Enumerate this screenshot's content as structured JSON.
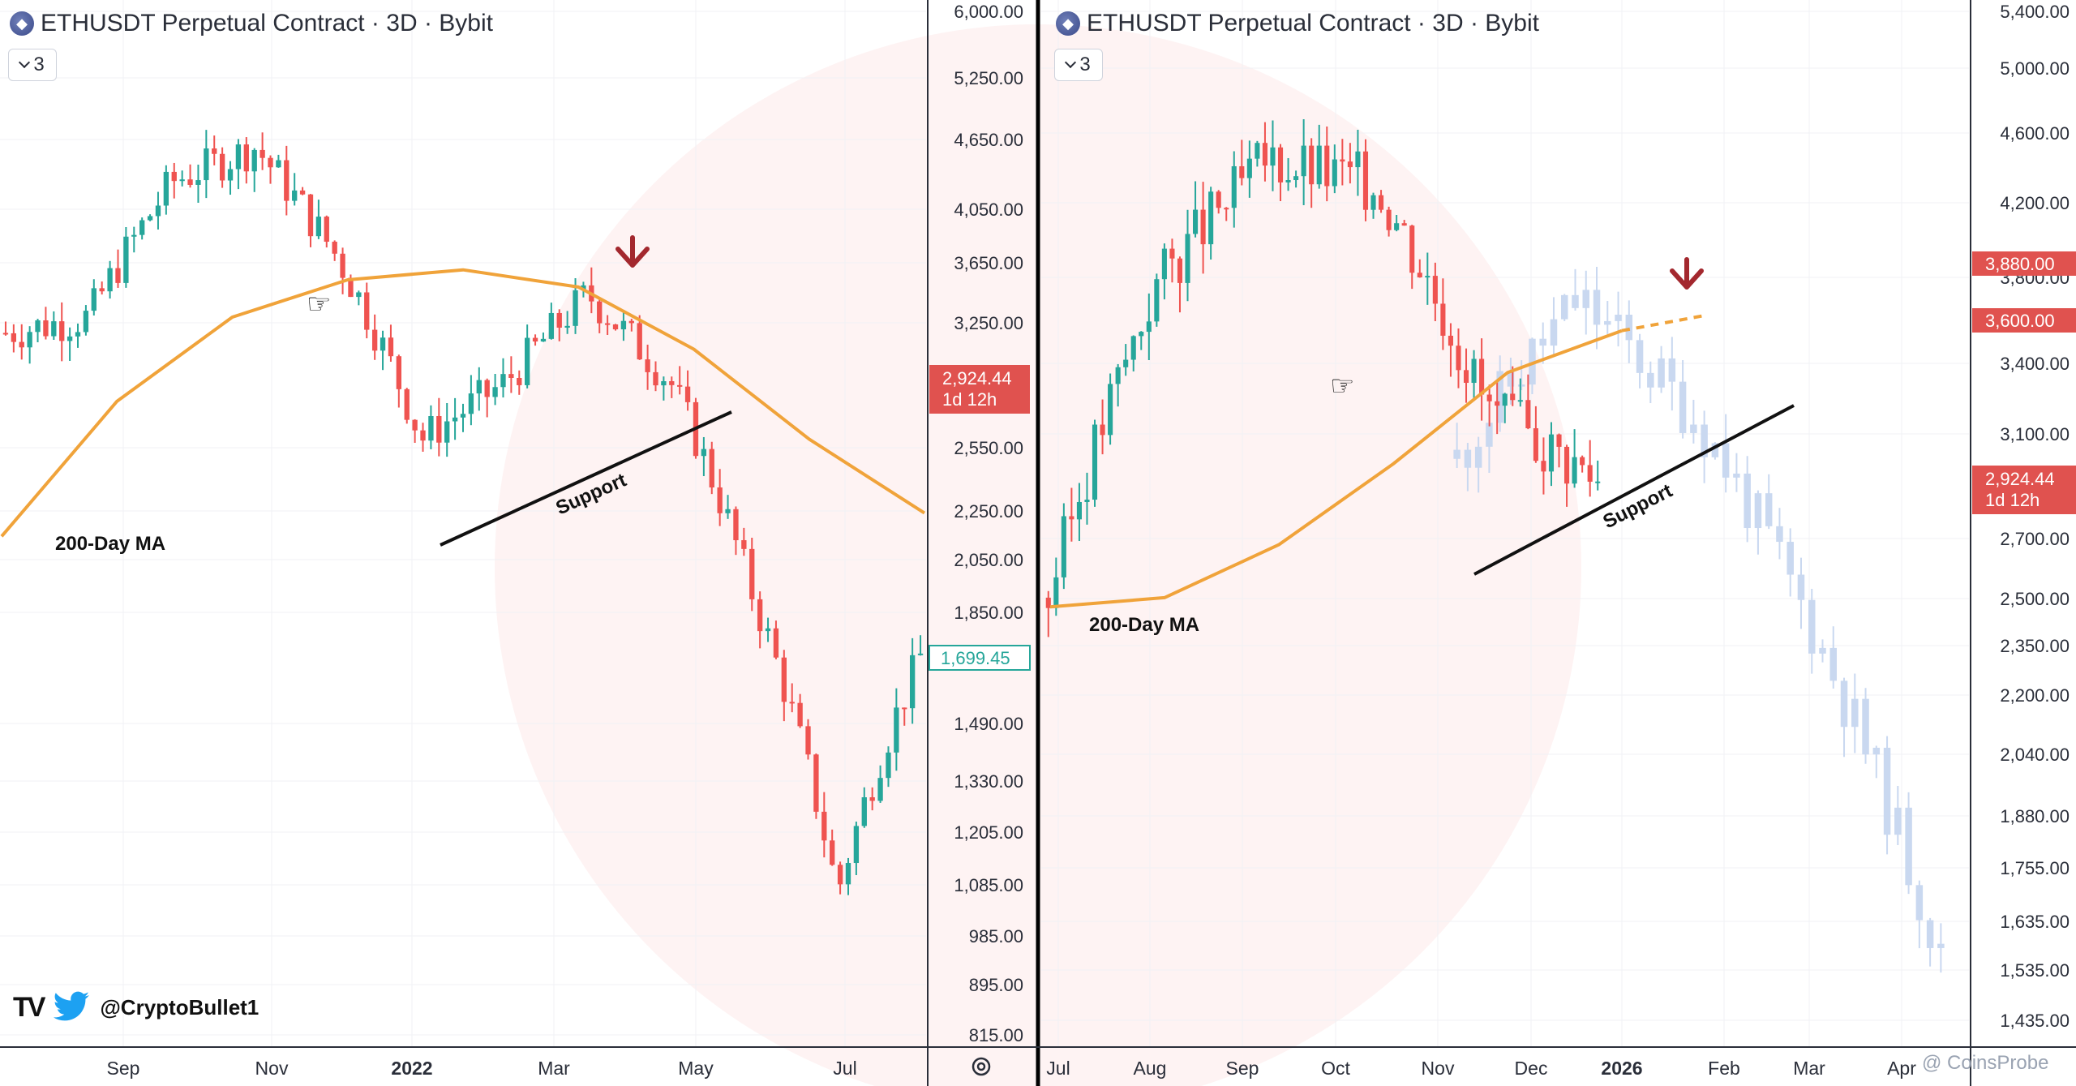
{
  "left_panel": {
    "title": "ETHUSDT Perpetual Contract · 3D · Bybit",
    "interval": "3",
    "price_labels": [
      "6,000.00",
      "5,250.00",
      "4,650.00",
      "4,050.00",
      "3,650.00",
      "3,250.00",
      "2,550.00",
      "2,250.00",
      "2,050.00",
      "1,850.00",
      "1,490.00",
      "1,330.00",
      "1,205.00",
      "1,085.00",
      "985.00",
      "895.00",
      "815.00"
    ],
    "time_labels": [
      "Sep",
      "Nov",
      "2022",
      "Mar",
      "May",
      "Jul"
    ],
    "current_price": "2,924.44",
    "countdown": "1d 12h",
    "marker_price": "1,699.45",
    "ma_label": "200-Day MA",
    "support_label": "Support"
  },
  "right_panel": {
    "title": "ETHUSDT Perpetual Contract · 3D · Bybit",
    "interval": "3",
    "price_labels": [
      "5,400.00",
      "5,000.00",
      "4,600.00",
      "4,200.00",
      "3,800.00",
      "3,400.00",
      "3,100.00",
      "2,700.00",
      "2,500.00",
      "2,350.00",
      "2,200.00",
      "2,040.00",
      "1,880.00",
      "1,755.00",
      "1,635.00",
      "1,535.00",
      "1,435.00"
    ],
    "time_labels": [
      "Jul",
      "Aug",
      "Sep",
      "Oct",
      "Nov",
      "Dec",
      "2026",
      "Feb",
      "Mar",
      "Apr"
    ],
    "level_1": "3,880.00",
    "level_2": "3,600.00",
    "current_price": "2,924.44",
    "countdown": "1d 12h",
    "ma_label": "200-Day MA",
    "support_label": "Support"
  },
  "branding": {
    "handle": "@CryptoBullet1",
    "watermark": "@ CoinsProbe"
  },
  "icons": {
    "symbol": "ethereum-icon",
    "pointer": "hand-pointing-icon",
    "arrow": "down-arrow-icon",
    "settings": "gear-icon",
    "twitter": "twitter-bird-icon"
  },
  "colors": {
    "up": "#26a69a",
    "down": "#ef5350",
    "ma": "#f0a33a",
    "projection": "#c9d8f0",
    "arrow": "#a3282e",
    "price_tag": "#e0524f"
  },
  "chart_data": [
    {
      "type": "line",
      "title": "ETHUSDT Perpetual Contract · 3D · Bybit",
      "y_scale": "log",
      "ylim": [
        815,
        6000
      ],
      "x_ticks": [
        "Sep",
        "Nov",
        "2022",
        "Mar",
        "May",
        "Jul"
      ],
      "series": [
        {
          "name": "Close",
          "x": [
            "2021-08",
            "2021-09",
            "2021-10",
            "2021-11",
            "2021-12",
            "2022-01",
            "2022-02",
            "2022-03",
            "2022-04",
            "2022-05",
            "2022-06",
            "2022-07"
          ],
          "values": [
            3200,
            3300,
            4300,
            4600,
            3700,
            2600,
            2900,
            3450,
            2900,
            1900,
            1070,
            1700
          ]
        },
        {
          "name": "200-Day MA",
          "x": [
            "2021-08",
            "2021-10",
            "2021-12",
            "2022-01",
            "2022-03",
            "2022-04",
            "2022-05",
            "2022-06",
            "2022-07"
          ],
          "values": [
            2150,
            2800,
            3300,
            3550,
            3620,
            3500,
            3100,
            2600,
            2250
          ]
        }
      ],
      "annotations": [
        "200-Day MA",
        "Support"
      ],
      "current_price": 2924.44,
      "marker_price": 1699.45
    },
    {
      "type": "line",
      "title": "ETHUSDT Perpetual Contract · 3D · Bybit",
      "y_scale": "log",
      "ylim": [
        1435,
        5400
      ],
      "x_ticks": [
        "Jul",
        "Aug",
        "Sep",
        "Oct",
        "Nov",
        "Dec",
        "2026",
        "Feb",
        "Mar",
        "Apr"
      ],
      "series": [
        {
          "name": "Close",
          "x": [
            "2025-07",
            "2025-08",
            "2025-09",
            "2025-10",
            "2025-11",
            "2025-12"
          ],
          "values": [
            2500,
            3800,
            4450,
            4300,
            3200,
            2924
          ]
        },
        {
          "name": "200-Day MA",
          "x": [
            "2025-07",
            "2025-08",
            "2025-09",
            "2025-10",
            "2025-11",
            "2025-12",
            "2026-01"
          ],
          "values": [
            2470,
            2500,
            2680,
            2980,
            3360,
            3550,
            3620
          ]
        },
        {
          "name": "Projection",
          "x": [
            "2025-12",
            "2026-01",
            "2026-02",
            "2026-03",
            "2026-04"
          ],
          "values": [
            3000,
            3700,
            3150,
            2350,
            1550
          ]
        }
      ],
      "levels": [
        3880,
        3600
      ],
      "annotations": [
        "200-Day MA",
        "Support"
      ],
      "current_price": 2924.44
    }
  ]
}
